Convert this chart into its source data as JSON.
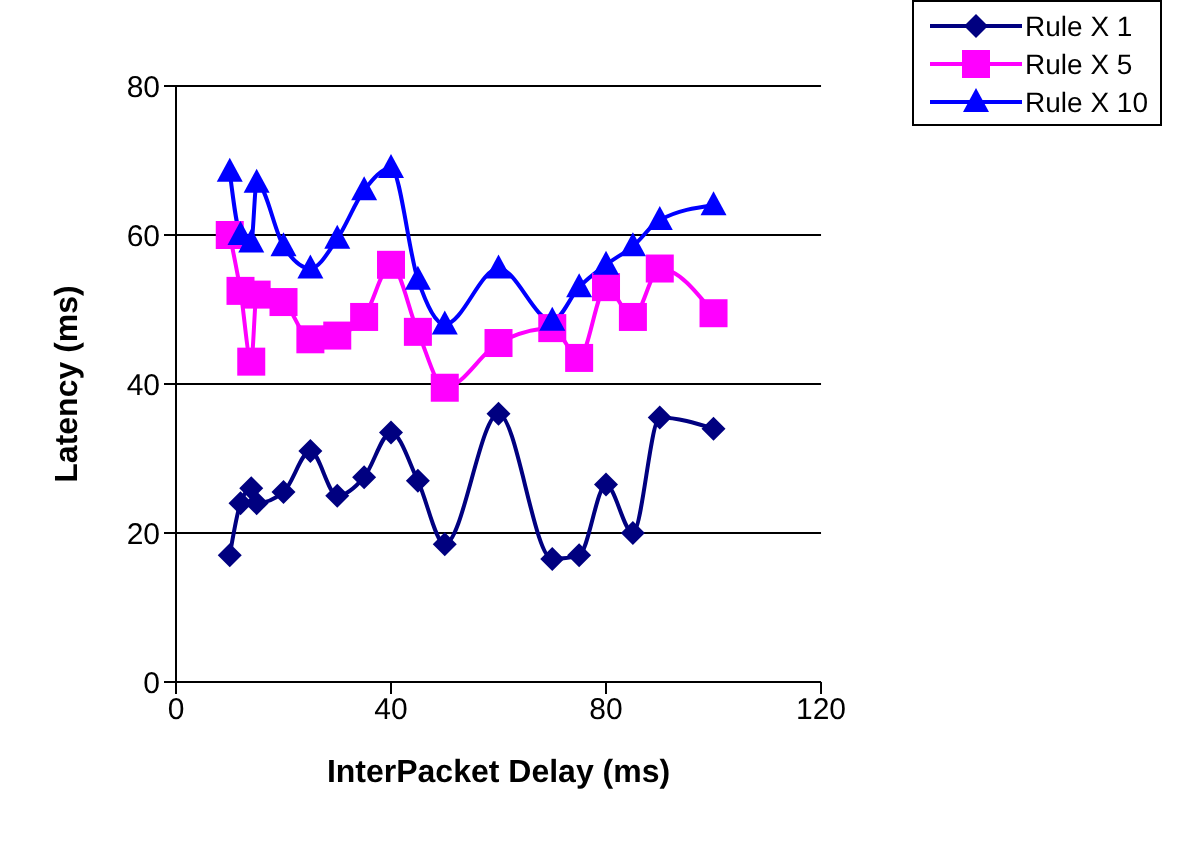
{
  "chart_data": {
    "type": "line",
    "xlabel": "InterPacket Delay (ms)",
    "ylabel": "Latency (ms)",
    "x": [
      10,
      12,
      14,
      15,
      20,
      25,
      30,
      35,
      40,
      45,
      50,
      60,
      70,
      75,
      80,
      85,
      90,
      100
    ],
    "series": [
      {
        "name": "Rule X 1",
        "color": "#000080",
        "marker": "diamond",
        "values": [
          17,
          24,
          26,
          24,
          25.5,
          31,
          25,
          27.5,
          33.5,
          27,
          18.5,
          36,
          16.5,
          17,
          26.5,
          20,
          35.5,
          34
        ]
      },
      {
        "name": "Rule X 5",
        "color": "#ff00ff",
        "marker": "square",
        "values": [
          60,
          52.5,
          43,
          52,
          51,
          46,
          46.5,
          49,
          56,
          47,
          39.5,
          45.5,
          47.5,
          43.5,
          53,
          49,
          55.5,
          49.5
        ]
      },
      {
        "name": "Rule X 10",
        "color": "#0000ff",
        "marker": "triangle",
        "values": [
          68.5,
          60,
          59,
          67,
          58.5,
          55.5,
          59.5,
          66,
          69,
          54,
          48,
          55.5,
          48.5,
          53,
          56,
          58.5,
          62,
          64
        ]
      }
    ],
    "xlim": [
      0,
      120
    ],
    "xticks": [
      0,
      40,
      80,
      120
    ],
    "ylim": [
      0,
      80
    ],
    "yticks": [
      0,
      20,
      40,
      60,
      80
    ],
    "grid": "y",
    "legend": "top right"
  }
}
